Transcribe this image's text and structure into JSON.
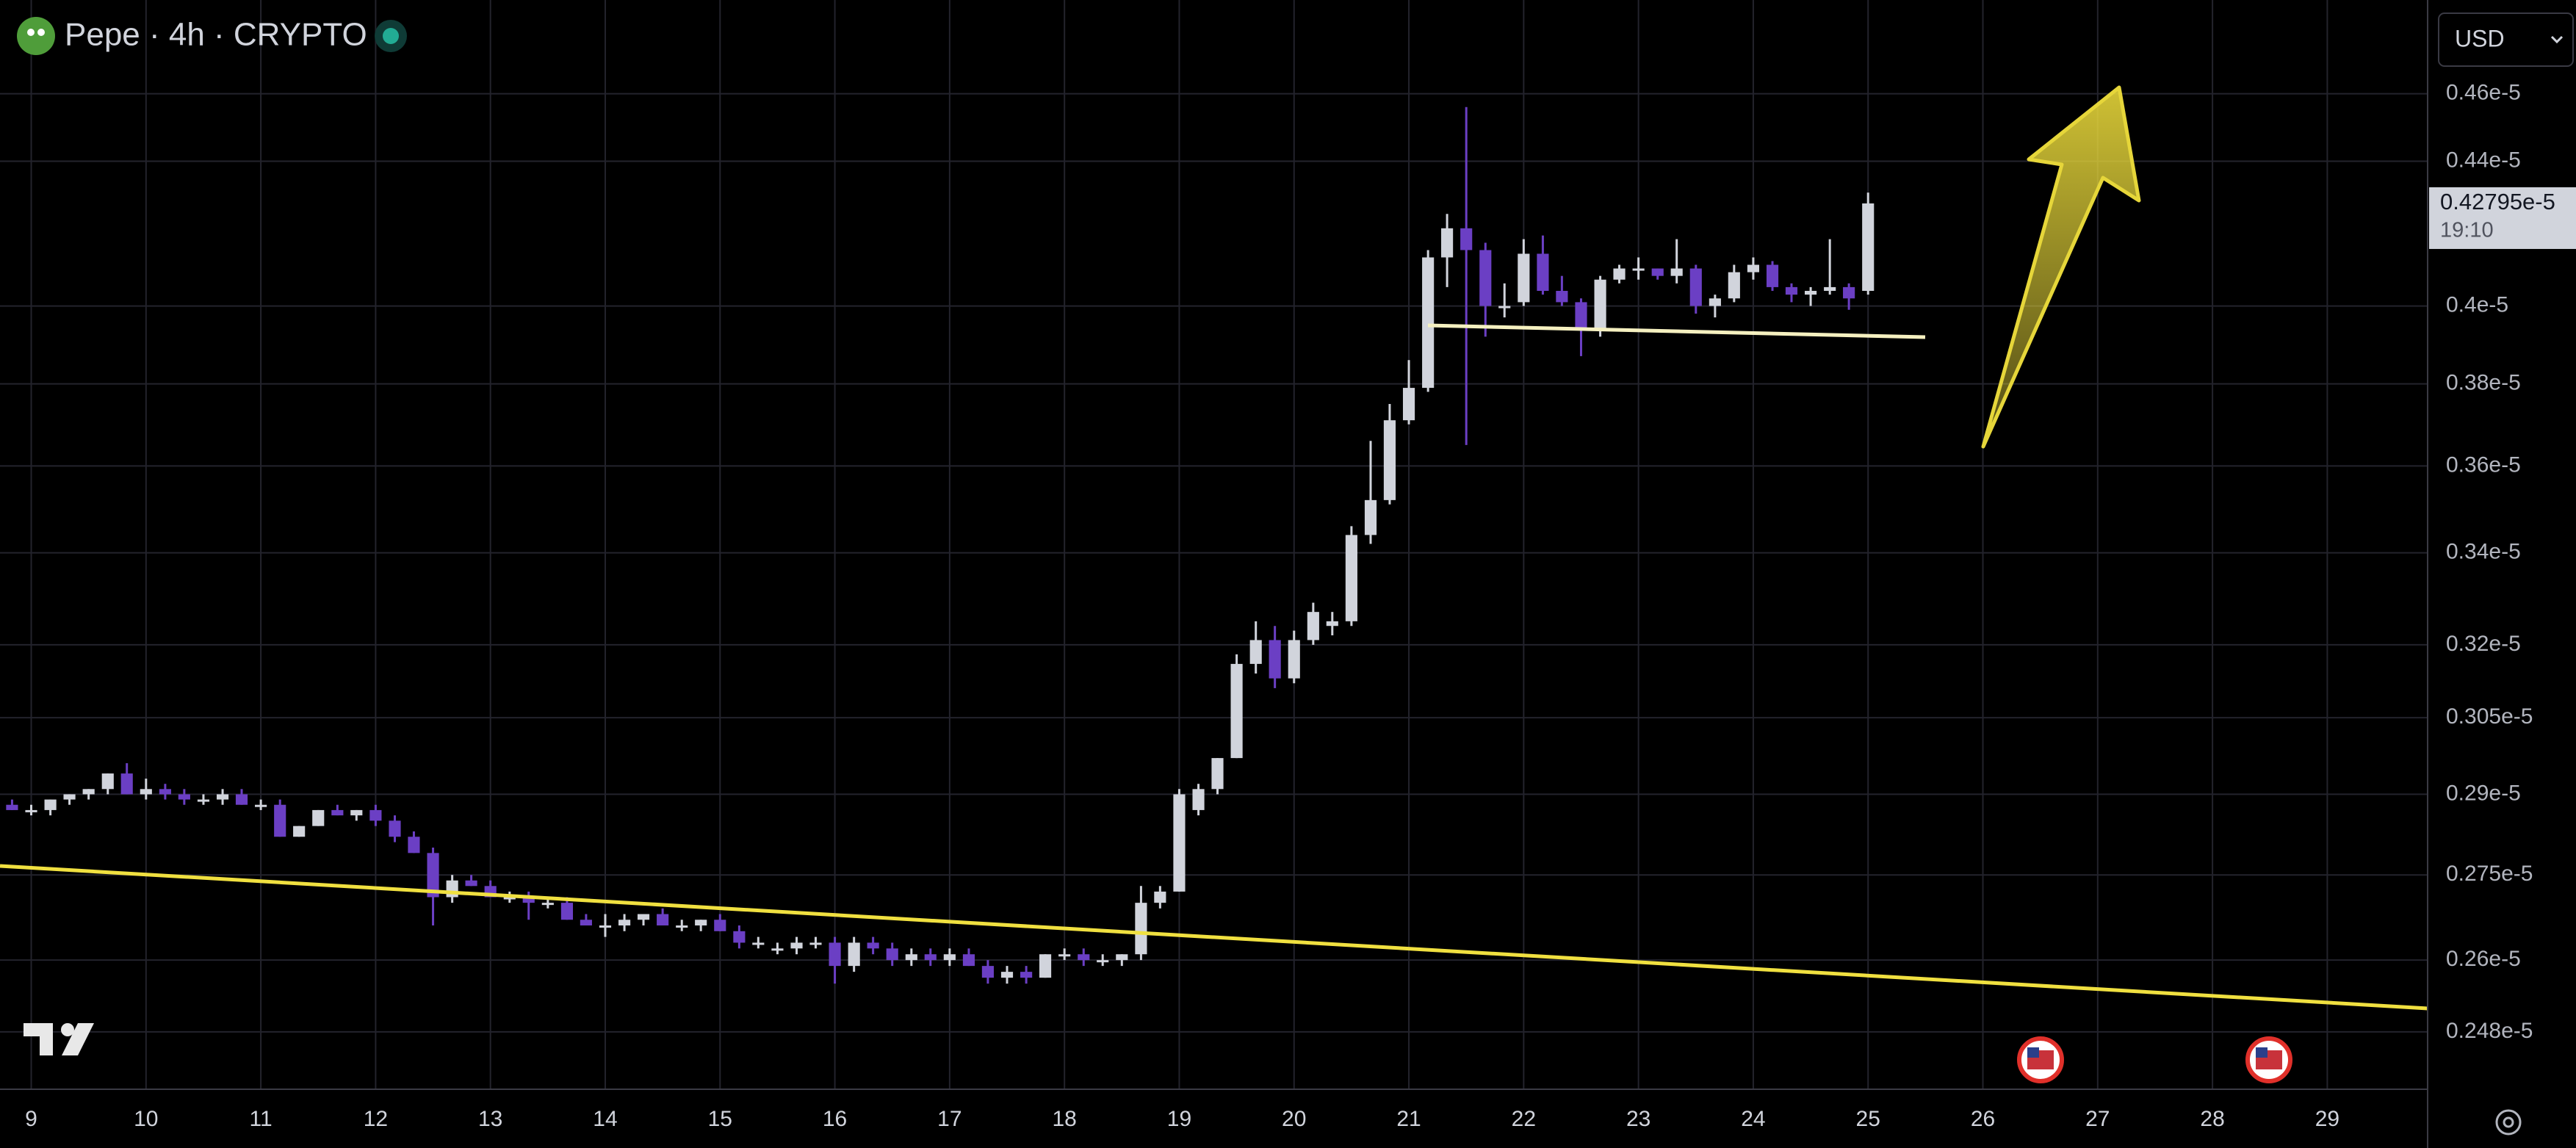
{
  "chart_data": {
    "type": "candlestick",
    "title": "Pepe · 4h · CRYPTO",
    "currency": "USD",
    "countdown": "19:10",
    "last_price": {
      "value": 4.2795e-06,
      "label": "0.42795e-5"
    },
    "log_scale": true,
    "grid": true,
    "up_color": "#d1d4dc",
    "down_color": "#6b3fc4",
    "xlim": [
      8.728,
      29.874
    ],
    "xticks": [
      9,
      10,
      11,
      12,
      13,
      14,
      15,
      16,
      17,
      18,
      19,
      20,
      21,
      22,
      23,
      24,
      25,
      26,
      27,
      28,
      29
    ],
    "ylim": [
      2.388e-06,
      4.893e-06
    ],
    "yticks": [
      {
        "value": 4.6e-06,
        "label": "0.46e-5"
      },
      {
        "value": 4.4e-06,
        "label": "0.44e-5"
      },
      {
        "value": 4e-06,
        "label": "0.4e-5"
      },
      {
        "value": 3.8e-06,
        "label": "0.38e-5"
      },
      {
        "value": 3.6e-06,
        "label": "0.36e-5"
      },
      {
        "value": 3.4e-06,
        "label": "0.34e-5"
      },
      {
        "value": 3.2e-06,
        "label": "0.32e-5"
      },
      {
        "value": 3.05e-06,
        "label": "0.305e-5"
      },
      {
        "value": 2.9e-06,
        "label": "0.29e-5"
      },
      {
        "value": 2.75e-06,
        "label": "0.275e-5"
      },
      {
        "value": 2.6e-06,
        "label": "0.26e-5"
      },
      {
        "value": 2.48e-06,
        "label": "0.248e-5"
      }
    ],
    "x": [
      8.833,
      9,
      9.167,
      9.333,
      9.5,
      9.667,
      9.833,
      10,
      10.167,
      10.333,
      10.5,
      10.667,
      10.833,
      11,
      11.167,
      11.333,
      11.5,
      11.667,
      11.833,
      12,
      12.167,
      12.333,
      12.5,
      12.667,
      12.833,
      13,
      13.167,
      13.333,
      13.5,
      13.667,
      13.833,
      14,
      14.167,
      14.333,
      14.5,
      14.667,
      14.833,
      15,
      15.167,
      15.333,
      15.5,
      15.667,
      15.833,
      16,
      16.167,
      16.333,
      16.5,
      16.667,
      16.833,
      17,
      17.167,
      17.333,
      17.5,
      17.667,
      17.833,
      18,
      18.167,
      18.333,
      18.5,
      18.667,
      18.833,
      19,
      19.167,
      19.333,
      19.5,
      19.667,
      19.833,
      20,
      20.167,
      20.333,
      20.5,
      20.667,
      20.833,
      21,
      21.167,
      21.333,
      21.5,
      21.667,
      21.833,
      22,
      22.167,
      22.333,
      22.5,
      22.667,
      22.833,
      23,
      23.167,
      23.333,
      23.5,
      23.667,
      23.833,
      24,
      24.167,
      24.333,
      24.5,
      24.667,
      24.833,
      25
    ],
    "open": [
      2.88e-06,
      2.87e-06,
      2.87e-06,
      2.89e-06,
      2.9e-06,
      2.91e-06,
      2.94e-06,
      2.9e-06,
      2.91e-06,
      2.9e-06,
      2.89e-06,
      2.89e-06,
      2.9e-06,
      2.88e-06,
      2.88e-06,
      2.82e-06,
      2.84e-06,
      2.87e-06,
      2.86e-06,
      2.87e-06,
      2.85e-06,
      2.82e-06,
      2.79e-06,
      2.71e-06,
      2.74e-06,
      2.73e-06,
      2.71e-06,
      2.71e-06,
      2.7e-06,
      2.7e-06,
      2.67e-06,
      2.66e-06,
      2.66e-06,
      2.67e-06,
      2.68e-06,
      2.66e-06,
      2.66e-06,
      2.67e-06,
      2.65e-06,
      2.63e-06,
      2.62e-06,
      2.62e-06,
      2.63e-06,
      2.63e-06,
      2.59e-06,
      2.63e-06,
      2.62e-06,
      2.6e-06,
      2.61e-06,
      2.6e-06,
      2.61e-06,
      2.59e-06,
      2.57e-06,
      2.58e-06,
      2.57e-06,
      2.61e-06,
      2.61e-06,
      2.6e-06,
      2.6e-06,
      2.61e-06,
      2.7e-06,
      2.72e-06,
      2.87e-06,
      2.91e-06,
      2.97e-06,
      3.16e-06,
      3.21e-06,
      3.13e-06,
      3.21e-06,
      3.24e-06,
      3.25e-06,
      3.44e-06,
      3.52e-06,
      3.71e-06,
      3.79e-06,
      4.13e-06,
      4.21e-06,
      4.15e-06,
      4e-06,
      4.01e-06,
      4.14e-06,
      4.04e-06,
      4.01e-06,
      3.94e-06,
      4.07e-06,
      4.1e-06,
      4.1e-06,
      4.08e-06,
      4.1e-06,
      4e-06,
      4.02e-06,
      4.09e-06,
      4.11e-06,
      4.05e-06,
      4.03e-06,
      4.04e-06,
      4.05e-06,
      4.04e-06
    ],
    "high": [
      2.89e-06,
      2.88e-06,
      2.89e-06,
      2.9e-06,
      2.91e-06,
      2.94e-06,
      2.96e-06,
      2.93e-06,
      2.92e-06,
      2.91e-06,
      2.9e-06,
      2.91e-06,
      2.91e-06,
      2.89e-06,
      2.89e-06,
      2.84e-06,
      2.87e-06,
      2.88e-06,
      2.87e-06,
      2.88e-06,
      2.86e-06,
      2.83e-06,
      2.8e-06,
      2.75e-06,
      2.75e-06,
      2.74e-06,
      2.72e-06,
      2.72e-06,
      2.71e-06,
      2.71e-06,
      2.68e-06,
      2.68e-06,
      2.68e-06,
      2.68e-06,
      2.69e-06,
      2.67e-06,
      2.67e-06,
      2.68e-06,
      2.66e-06,
      2.64e-06,
      2.63e-06,
      2.64e-06,
      2.64e-06,
      2.64e-06,
      2.64e-06,
      2.64e-06,
      2.63e-06,
      2.62e-06,
      2.62e-06,
      2.62e-06,
      2.62e-06,
      2.6e-06,
      2.59e-06,
      2.59e-06,
      2.61e-06,
      2.62e-06,
      2.62e-06,
      2.61e-06,
      2.61e-06,
      2.73e-06,
      2.73e-06,
      2.91e-06,
      2.92e-06,
      2.97e-06,
      3.18e-06,
      3.25e-06,
      3.24e-06,
      3.23e-06,
      3.29e-06,
      3.27e-06,
      3.46e-06,
      3.66e-06,
      3.75e-06,
      3.86e-06,
      4.15e-06,
      4.25e-06,
      4.56e-06,
      4.17e-06,
      4.06e-06,
      4.18e-06,
      4.19e-06,
      4.08e-06,
      4.02e-06,
      4.08e-06,
      4.11e-06,
      4.13e-06,
      4.1e-06,
      4.18e-06,
      4.11e-06,
      4.03e-06,
      4.11e-06,
      4.13e-06,
      4.12e-06,
      4.06e-06,
      4.05e-06,
      4.18e-06,
      4.06e-06,
      4.31e-06
    ],
    "low": [
      2.87e-06,
      2.86e-06,
      2.86e-06,
      2.88e-06,
      2.89e-06,
      2.9e-06,
      2.9e-06,
      2.89e-06,
      2.89e-06,
      2.88e-06,
      2.88e-06,
      2.88e-06,
      2.88e-06,
      2.87e-06,
      2.82e-06,
      2.82e-06,
      2.84e-06,
      2.86e-06,
      2.85e-06,
      2.84e-06,
      2.81e-06,
      2.79e-06,
      2.66e-06,
      2.7e-06,
      2.73e-06,
      2.71e-06,
      2.7e-06,
      2.67e-06,
      2.69e-06,
      2.67e-06,
      2.66e-06,
      2.64e-06,
      2.65e-06,
      2.66e-06,
      2.66e-06,
      2.65e-06,
      2.65e-06,
      2.65e-06,
      2.62e-06,
      2.62e-06,
      2.61e-06,
      2.61e-06,
      2.62e-06,
      2.56e-06,
      2.58e-06,
      2.61e-06,
      2.59e-06,
      2.59e-06,
      2.59e-06,
      2.59e-06,
      2.59e-06,
      2.56e-06,
      2.56e-06,
      2.56e-06,
      2.57e-06,
      2.6e-06,
      2.59e-06,
      2.59e-06,
      2.59e-06,
      2.6e-06,
      2.69e-06,
      2.72e-06,
      2.86e-06,
      2.9e-06,
      2.97e-06,
      3.14e-06,
      3.11e-06,
      3.12e-06,
      3.2e-06,
      3.22e-06,
      3.24e-06,
      3.42e-06,
      3.51e-06,
      3.7e-06,
      3.78e-06,
      4.05e-06,
      3.65e-06,
      3.92e-06,
      3.97e-06,
      4e-06,
      4.03e-06,
      4e-06,
      3.87e-06,
      3.92e-06,
      4.06e-06,
      4.07e-06,
      4.07e-06,
      4.06e-06,
      3.98e-06,
      3.97e-06,
      4.01e-06,
      4.07e-06,
      4.04e-06,
      4.01e-06,
      4e-06,
      4.03e-06,
      3.99e-06,
      4.03e-06
    ],
    "close": [
      2.87e-06,
      2.87e-06,
      2.89e-06,
      2.9e-06,
      2.91e-06,
      2.94e-06,
      2.9e-06,
      2.91e-06,
      2.9e-06,
      2.89e-06,
      2.89e-06,
      2.9e-06,
      2.88e-06,
      2.88e-06,
      2.82e-06,
      2.84e-06,
      2.87e-06,
      2.86e-06,
      2.87e-06,
      2.85e-06,
      2.82e-06,
      2.79e-06,
      2.71e-06,
      2.74e-06,
      2.73e-06,
      2.71e-06,
      2.71e-06,
      2.7e-06,
      2.7e-06,
      2.67e-06,
      2.66e-06,
      2.66e-06,
      2.67e-06,
      2.68e-06,
      2.66e-06,
      2.66e-06,
      2.67e-06,
      2.65e-06,
      2.63e-06,
      2.63e-06,
      2.62e-06,
      2.63e-06,
      2.63e-06,
      2.59e-06,
      2.63e-06,
      2.62e-06,
      2.6e-06,
      2.61e-06,
      2.6e-06,
      2.61e-06,
      2.59e-06,
      2.57e-06,
      2.58e-06,
      2.57e-06,
      2.61e-06,
      2.61e-06,
      2.6e-06,
      2.6e-06,
      2.61e-06,
      2.7e-06,
      2.72e-06,
      2.9e-06,
      2.91e-06,
      2.97e-06,
      3.16e-06,
      3.21e-06,
      3.13e-06,
      3.21e-06,
      3.27e-06,
      3.25e-06,
      3.44e-06,
      3.52e-06,
      3.71e-06,
      3.79e-06,
      4.13e-06,
      4.21e-06,
      4.15e-06,
      4e-06,
      4e-06,
      4.14e-06,
      4.04e-06,
      4.01e-06,
      3.94e-06,
      4.07e-06,
      4.1e-06,
      4.1e-06,
      4.08e-06,
      4.1e-06,
      4e-06,
      4.02e-06,
      4.09e-06,
      4.11e-06,
      4.05e-06,
      4.03e-06,
      4.04e-06,
      4.05e-06,
      4.02e-06,
      4.2795e-06
    ]
  }
}
